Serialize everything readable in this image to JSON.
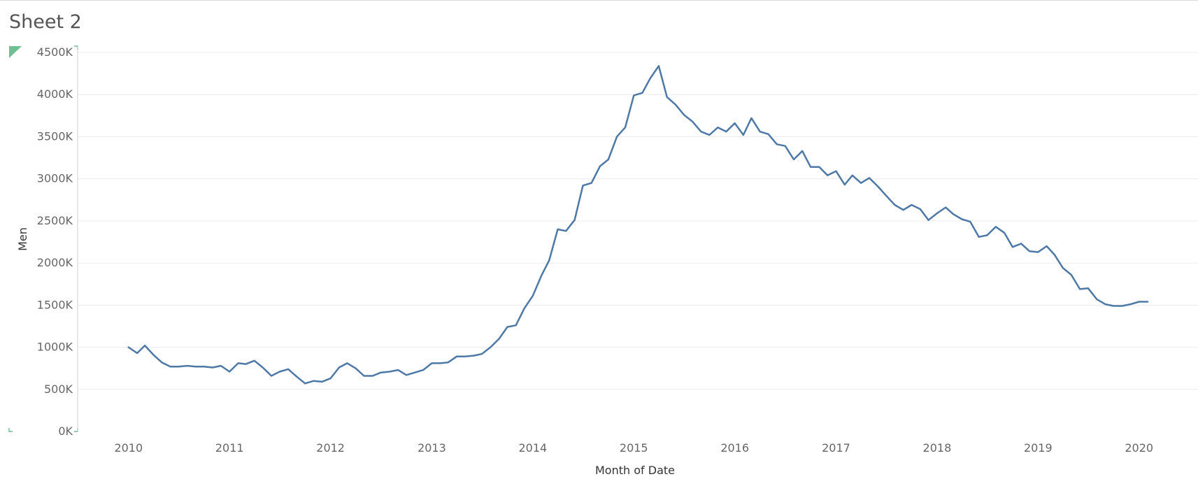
{
  "sheet": {
    "title": "Sheet 2"
  },
  "colors": {
    "line": "#4e79a7",
    "grid": "#ececec",
    "axis_text": "#666666",
    "axis_title": "#333333",
    "marker": "#6fbf94"
  },
  "chart_data": {
    "type": "line",
    "xlabel": "Month of Date",
    "ylabel": "Men",
    "ylim": [
      0,
      4500000
    ],
    "xlim": [
      "2009-07-01",
      "2020-08-01"
    ],
    "y_ticks": [
      0,
      500000,
      1000000,
      1500000,
      2000000,
      2500000,
      3000000,
      3500000,
      4000000,
      4500000
    ],
    "y_tick_labels": [
      "0K",
      "500K",
      "1000K",
      "1500K",
      "2000K",
      "2500K",
      "3000K",
      "3500K",
      "4000K",
      "4500K"
    ],
    "x_ticks": [
      "2010-01-01",
      "2011-01-01",
      "2012-01-01",
      "2013-01-01",
      "2014-01-01",
      "2015-01-01",
      "2016-01-01",
      "2017-01-01",
      "2018-01-01",
      "2019-01-01",
      "2020-01-01"
    ],
    "x_tick_labels": [
      "2010",
      "2011",
      "2012",
      "2013",
      "2014",
      "2015",
      "2016",
      "2017",
      "2018",
      "2019",
      "2020"
    ],
    "grid": true,
    "legend": "none",
    "series": [
      {
        "x": [
          "2010-01",
          "2010-02",
          "2010-03",
          "2010-04",
          "2010-05",
          "2010-06",
          "2010-07",
          "2010-08",
          "2010-09",
          "2010-10",
          "2010-11",
          "2010-12",
          "2011-01",
          "2011-02",
          "2011-03",
          "2011-04",
          "2011-05",
          "2011-06",
          "2011-07",
          "2011-08",
          "2011-09",
          "2011-10",
          "2011-11",
          "2011-12",
          "2012-01",
          "2012-02",
          "2012-03",
          "2012-04",
          "2012-05",
          "2012-06",
          "2012-07",
          "2012-08",
          "2012-09",
          "2012-10",
          "2012-11",
          "2012-12",
          "2013-01",
          "2013-02",
          "2013-03",
          "2013-04",
          "2013-05",
          "2013-06",
          "2013-07",
          "2013-08",
          "2013-09",
          "2013-10",
          "2013-11",
          "2013-12",
          "2014-01",
          "2014-02",
          "2014-03",
          "2014-04",
          "2014-05",
          "2014-06",
          "2014-07",
          "2014-08",
          "2014-09",
          "2014-10",
          "2014-11",
          "2014-12",
          "2015-01",
          "2015-02",
          "2015-03",
          "2015-04",
          "2015-05",
          "2015-06",
          "2015-07",
          "2015-08",
          "2015-09",
          "2015-10",
          "2015-11",
          "2015-12",
          "2016-01",
          "2016-02",
          "2016-03",
          "2016-04",
          "2016-05",
          "2016-06",
          "2016-07",
          "2016-08",
          "2016-09",
          "2016-10",
          "2016-11",
          "2016-12",
          "2017-01",
          "2017-02",
          "2017-03",
          "2017-04",
          "2017-05",
          "2017-06",
          "2017-07",
          "2017-08",
          "2017-09",
          "2017-10",
          "2017-11",
          "2017-12",
          "2018-01",
          "2018-02",
          "2018-03",
          "2018-04",
          "2018-05",
          "2018-06",
          "2018-07",
          "2018-08",
          "2018-09",
          "2018-10",
          "2018-11",
          "2018-12",
          "2019-01",
          "2019-02",
          "2019-03",
          "2019-04",
          "2019-05",
          "2019-06",
          "2019-07",
          "2019-08",
          "2019-09",
          "2019-10",
          "2019-11",
          "2019-12",
          "2020-01",
          "2020-02"
        ],
        "values": [
          1000000,
          930000,
          1020000,
          910000,
          820000,
          770000,
          770000,
          780000,
          770000,
          770000,
          760000,
          780000,
          710000,
          810000,
          800000,
          840000,
          760000,
          660000,
          710000,
          740000,
          650000,
          570000,
          600000,
          590000,
          630000,
          760000,
          810000,
          750000,
          660000,
          660000,
          700000,
          710000,
          730000,
          670000,
          700000,
          730000,
          810000,
          810000,
          820000,
          890000,
          890000,
          900000,
          920000,
          1000000,
          1100000,
          1240000,
          1260000,
          1460000,
          1610000,
          1850000,
          2030000,
          2400000,
          2380000,
          2510000,
          2920000,
          2950000,
          3150000,
          3230000,
          3500000,
          3610000,
          3990000,
          4020000,
          4190000,
          4340000,
          3970000,
          3880000,
          3760000,
          3680000,
          3560000,
          3520000,
          3610000,
          3560000,
          3660000,
          3520000,
          3720000,
          3560000,
          3530000,
          3410000,
          3390000,
          3230000,
          3330000,
          3140000,
          3140000,
          3040000,
          3090000,
          2930000,
          3040000,
          2950000,
          3010000,
          2910000,
          2800000,
          2690000,
          2630000,
          2690000,
          2640000,
          2510000,
          2590000,
          2660000,
          2580000,
          2520000,
          2490000,
          2310000,
          2330000,
          2430000,
          2360000,
          2190000,
          2230000,
          2140000,
          2130000,
          2200000,
          2100000,
          1940000,
          1860000,
          1690000,
          1700000,
          1570000,
          1510000,
          1490000,
          1490000,
          1510000,
          1540000,
          1540000
        ]
      }
    ]
  }
}
